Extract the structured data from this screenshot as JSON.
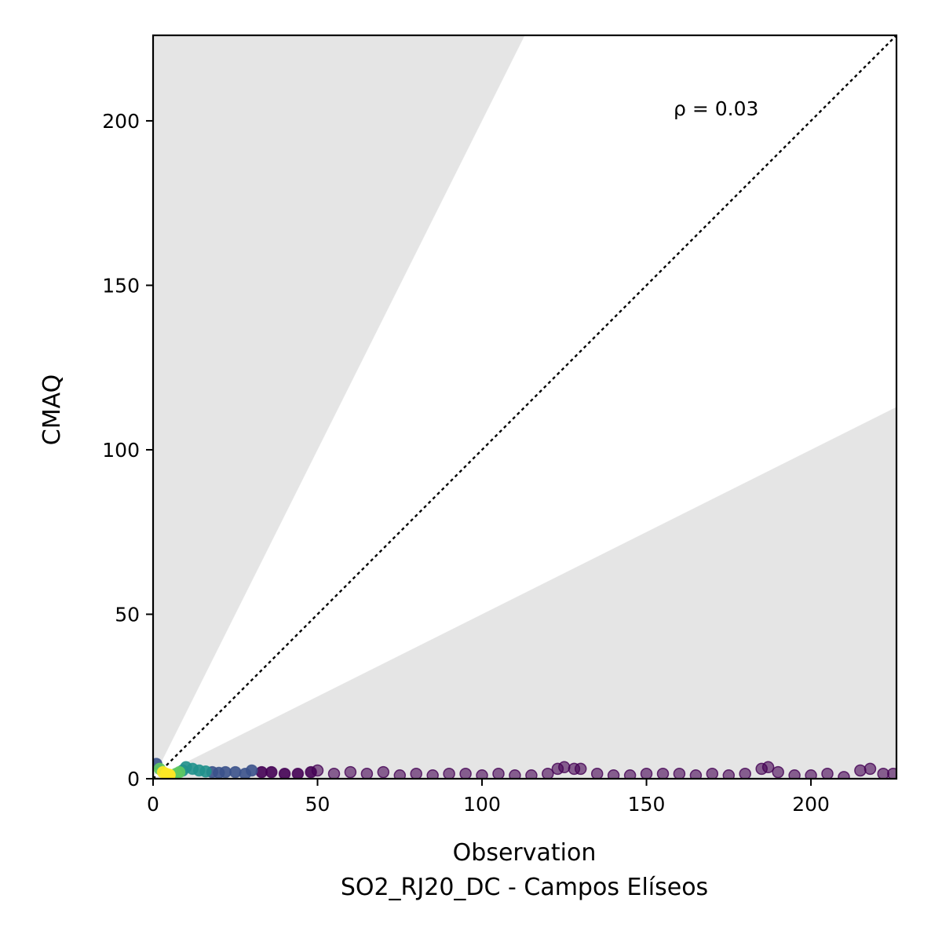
{
  "chart_data": {
    "type": "scatter",
    "xlabel": "Observation",
    "xlabel_sub": "SO2_RJ20_DC - Campos Elíseos",
    "ylabel": "CMAQ",
    "annotation": "ρ = 0.03",
    "xlim": [
      0,
      226
    ],
    "ylim": [
      0,
      226
    ],
    "xticks": [
      0,
      50,
      100,
      150,
      200
    ],
    "yticks": [
      0,
      50,
      100,
      150,
      200
    ],
    "grid": false,
    "reference_line": {
      "type": "1:1",
      "style": "dotted",
      "color": "#000000"
    },
    "shaded_region": {
      "description": "outside factor-of-2 band",
      "lower_slope": 0.5,
      "upper_slope": 2.0,
      "color": "#e5e5e5"
    },
    "colormap": "viridis",
    "density_colors": [
      "#440154",
      "#3b528b",
      "#21918c",
      "#5ec962",
      "#fde725"
    ],
    "series": [
      {
        "x": [
          1,
          2,
          3,
          4,
          5,
          5,
          6,
          7,
          8,
          9,
          10,
          12,
          14,
          16,
          18,
          20,
          22,
          25,
          28,
          30,
          33,
          36,
          40,
          44,
          48,
          50,
          55,
          60,
          65,
          70,
          75,
          80,
          85,
          90,
          95,
          100,
          105,
          110,
          115,
          120,
          123,
          125,
          128,
          130,
          135,
          140,
          145,
          150,
          155,
          160,
          165,
          170,
          175,
          180,
          185,
          187,
          190,
          195,
          200,
          205,
          210,
          215,
          218,
          222,
          225
        ],
        "y": [
          4.5,
          3.0,
          2.0,
          1.5,
          1.0,
          1.2,
          0.8,
          1.5,
          2.0,
          2.5,
          3.5,
          3.0,
          2.5,
          2.2,
          2.0,
          1.8,
          2.0,
          2.0,
          1.5,
          2.5,
          2.0,
          2.0,
          1.5,
          1.5,
          2.0,
          2.5,
          1.5,
          2.0,
          1.5,
          2.0,
          1.0,
          1.5,
          1.0,
          1.5,
          1.5,
          1.0,
          1.5,
          1.0,
          1.0,
          1.5,
          3.0,
          3.5,
          3.0,
          3.0,
          1.5,
          1.0,
          1.0,
          1.5,
          1.5,
          1.5,
          1.0,
          1.5,
          1.0,
          1.5,
          3.0,
          3.5,
          2.0,
          1.0,
          1.0,
          1.5,
          0.5,
          2.5,
          3.0,
          1.5,
          1.5
        ],
        "density": [
          0.3,
          0.7,
          0.9,
          1.0,
          1.0,
          0.95,
          0.85,
          0.8,
          0.7,
          0.6,
          0.55,
          0.5,
          0.45,
          0.4,
          0.35,
          0.3,
          0.25,
          0.2,
          0.15,
          0.15,
          0.1,
          0.1,
          0.05,
          0.05,
          0.05,
          0,
          0,
          0,
          0,
          0,
          0,
          0,
          0,
          0,
          0,
          0,
          0,
          0,
          0,
          0,
          0,
          0,
          0,
          0,
          0,
          0,
          0,
          0,
          0,
          0,
          0,
          0,
          0,
          0,
          0,
          0,
          0,
          0,
          0,
          0,
          0,
          0,
          0,
          0,
          0
        ]
      }
    ]
  }
}
